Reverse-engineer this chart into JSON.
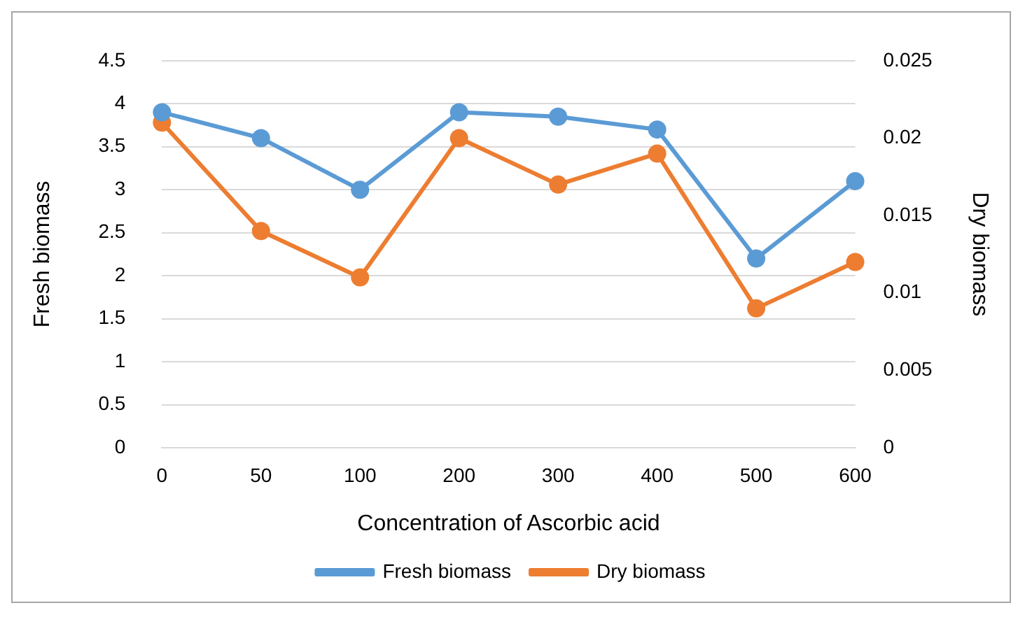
{
  "chart_data": {
    "type": "line",
    "xlabel": "Concentration of Ascorbic acid",
    "ylabel": "Fresh biomass",
    "y2label": "Dry biomass",
    "categories": [
      "0",
      "50",
      "100",
      "200",
      "300",
      "400",
      "500",
      "600"
    ],
    "series": [
      {
        "name": "Fresh biomass",
        "color": "#5b9bd5",
        "values": [
          3.9,
          3.6,
          3.0,
          3.9,
          3.85,
          3.7,
          2.2,
          3.1
        ]
      },
      {
        "name": "Dry biomass",
        "color": "#ed7d31",
        "axis": "y2",
        "values": [
          0.021,
          0.014,
          0.011,
          0.02,
          0.017,
          0.019,
          0.009,
          0.012
        ]
      }
    ],
    "ylim": [
      0,
      4.5
    ],
    "yticks": [
      0,
      0.5,
      1,
      1.5,
      2,
      2.5,
      3,
      3.5,
      4,
      4.5
    ],
    "y2lim": [
      0,
      0.025
    ],
    "y2ticks": [
      0,
      0.005,
      0.01,
      0.015,
      0.02,
      0.025
    ],
    "grid": "y",
    "legend": "bottom",
    "marker": "circle",
    "line_style": "solid"
  }
}
